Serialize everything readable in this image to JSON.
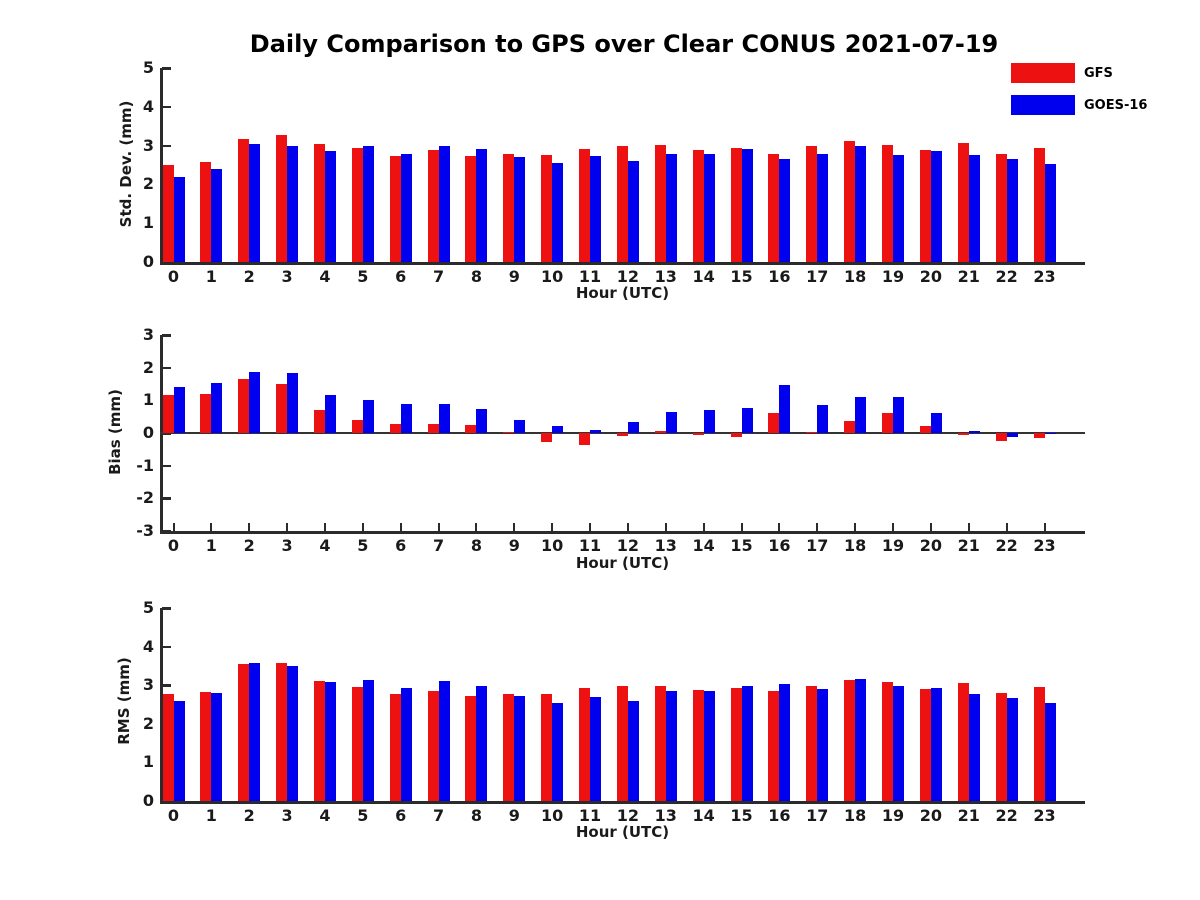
{
  "title": "Daily Comparison to GPS over Clear CONUS 2021-07-19",
  "legend": {
    "position": "top-right",
    "items": [
      {
        "label": "GFS",
        "color": "#ee1111"
      },
      {
        "label": "GOES-16",
        "color": "#0000ee"
      }
    ]
  },
  "colors": {
    "gfs_red": "#ee1111",
    "goes_blue": "#0000ee",
    "axis": "#2b2b2b",
    "text": "#1a1a1a"
  },
  "chart_data": [
    {
      "type": "bar",
      "title": "",
      "ylabel": "Std. Dev. (mm)",
      "xlabel": "Hour (UTC)",
      "ylim": [
        0,
        5
      ],
      "yticks": [
        0,
        1,
        2,
        3,
        4,
        5
      ],
      "grid": false,
      "legend_position": "figure-top-right",
      "categories": [
        "0",
        "1",
        "2",
        "3",
        "4",
        "5",
        "6",
        "7",
        "8",
        "9",
        "10",
        "11",
        "12",
        "13",
        "14",
        "15",
        "16",
        "17",
        "18",
        "19",
        "20",
        "21",
        "22",
        "23"
      ],
      "series": [
        {
          "name": "GFS",
          "color": "#ee1111",
          "values": [
            2.5,
            2.57,
            3.17,
            3.27,
            3.05,
            2.94,
            2.74,
            2.89,
            2.72,
            2.78,
            2.76,
            2.9,
            3.0,
            3.01,
            2.88,
            2.95,
            2.78,
            2.98,
            3.12,
            3.01,
            2.88,
            3.07,
            2.79,
            2.93
          ]
        },
        {
          "name": "GOES-16",
          "color": "#0000ee",
          "values": [
            2.2,
            2.4,
            3.05,
            3.0,
            2.85,
            3.0,
            2.79,
            3.0,
            2.9,
            2.7,
            2.54,
            2.73,
            2.61,
            2.79,
            2.78,
            2.91,
            2.66,
            2.79,
            2.98,
            2.77,
            2.86,
            2.75,
            2.66,
            2.53
          ]
        }
      ]
    },
    {
      "type": "bar",
      "title": "",
      "ylabel": "Bias (mm)",
      "xlabel": "Hour (UTC)",
      "ylim": [
        -3,
        3
      ],
      "yticks": [
        -3,
        -2,
        -1,
        0,
        1,
        2,
        3
      ],
      "grid": false,
      "zero_line": true,
      "categories": [
        "0",
        "1",
        "2",
        "3",
        "4",
        "5",
        "6",
        "7",
        "8",
        "9",
        "10",
        "11",
        "12",
        "13",
        "14",
        "15",
        "16",
        "17",
        "18",
        "19",
        "20",
        "21",
        "22",
        "23"
      ],
      "series": [
        {
          "name": "GFS",
          "color": "#ee1111",
          "values": [
            1.15,
            1.2,
            1.65,
            1.5,
            0.7,
            0.4,
            0.28,
            0.28,
            0.25,
            0.03,
            -0.28,
            -0.37,
            -0.1,
            0.05,
            -0.06,
            -0.12,
            0.62,
            0.03,
            0.36,
            0.6,
            0.21,
            -0.07,
            -0.26,
            -0.15
          ]
        },
        {
          "name": "GOES-16",
          "color": "#0000ee",
          "values": [
            1.4,
            1.52,
            1.88,
            1.83,
            1.15,
            1.0,
            0.9,
            0.88,
            0.75,
            0.4,
            0.22,
            0.08,
            0.35,
            0.65,
            0.7,
            0.76,
            1.46,
            0.85,
            1.1,
            1.1,
            0.6,
            0.06,
            -0.12,
            -0.04
          ]
        }
      ]
    },
    {
      "type": "bar",
      "title": "",
      "ylabel": "RMS (mm)",
      "xlabel": "Hour (UTC)",
      "ylim": [
        0,
        5
      ],
      "yticks": [
        0,
        1,
        2,
        3,
        4,
        5
      ],
      "grid": false,
      "categories": [
        "0",
        "1",
        "2",
        "3",
        "4",
        "5",
        "6",
        "7",
        "8",
        "9",
        "10",
        "11",
        "12",
        "13",
        "14",
        "15",
        "16",
        "17",
        "18",
        "19",
        "20",
        "21",
        "22",
        "23"
      ],
      "series": [
        {
          "name": "GFS",
          "color": "#ee1111",
          "values": [
            2.76,
            2.83,
            3.55,
            3.58,
            3.1,
            2.96,
            2.76,
            2.86,
            2.73,
            2.78,
            2.76,
            2.92,
            2.97,
            2.97,
            2.88,
            2.94,
            2.86,
            2.98,
            3.14,
            3.07,
            2.91,
            3.06,
            2.81,
            2.95
          ]
        },
        {
          "name": "GOES-16",
          "color": "#0000ee",
          "values": [
            2.6,
            2.8,
            3.58,
            3.5,
            3.07,
            3.13,
            2.92,
            3.1,
            2.97,
            2.72,
            2.53,
            2.7,
            2.6,
            2.85,
            2.85,
            2.98,
            3.02,
            2.9,
            3.17,
            2.97,
            2.92,
            2.78,
            2.66,
            2.53
          ]
        }
      ]
    }
  ]
}
